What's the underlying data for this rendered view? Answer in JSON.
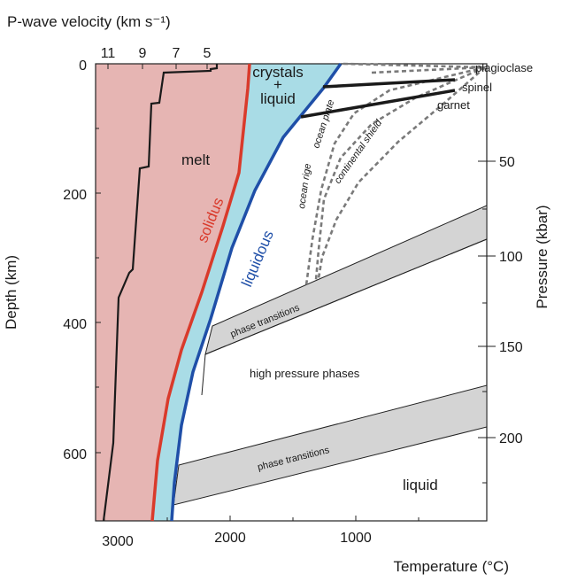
{
  "axes": {
    "top_title": "P-wave velocity (km s⁻¹)",
    "left_title": "Depth (km)",
    "right_title": "Pressure (kbar)",
    "bottom_title": "Temperature (°C)",
    "velocity_ticks": [
      "11",
      "9",
      "7",
      "5"
    ],
    "depth_ticks": [
      "0",
      "200",
      "400",
      "600"
    ],
    "pressure_ticks": [
      "50",
      "100",
      "150",
      "200"
    ],
    "temperature_ticks": [
      "3000",
      "2000",
      "1000"
    ]
  },
  "regions": {
    "melt": "melt",
    "crystals_line1": "crystals",
    "crystals_plus": "+",
    "crystals_line2": "liquid",
    "high_pressure": "high pressure phases",
    "liquid": "liquid",
    "phase_transitions_upper": "phase transitions",
    "phase_transitions_lower": "phase transitions"
  },
  "curves": {
    "solidus": "solidus",
    "liquidous": "liquidous",
    "ocean_rige": "ocean rige",
    "ocean_plate": "ocean plate",
    "continental_shield": "continental shield",
    "plagioclase": "plagioclase",
    "spinel": "spinel",
    "garnet": "garnet"
  },
  "colors": {
    "melt_fill": "#e6b5b3",
    "crystal_fill": "#a9dce6",
    "solidus": "#d93a2b",
    "liquidous": "#1f4fa8",
    "phase_band": "#d4d4d4",
    "geotherm": "#7a7a7a"
  }
}
